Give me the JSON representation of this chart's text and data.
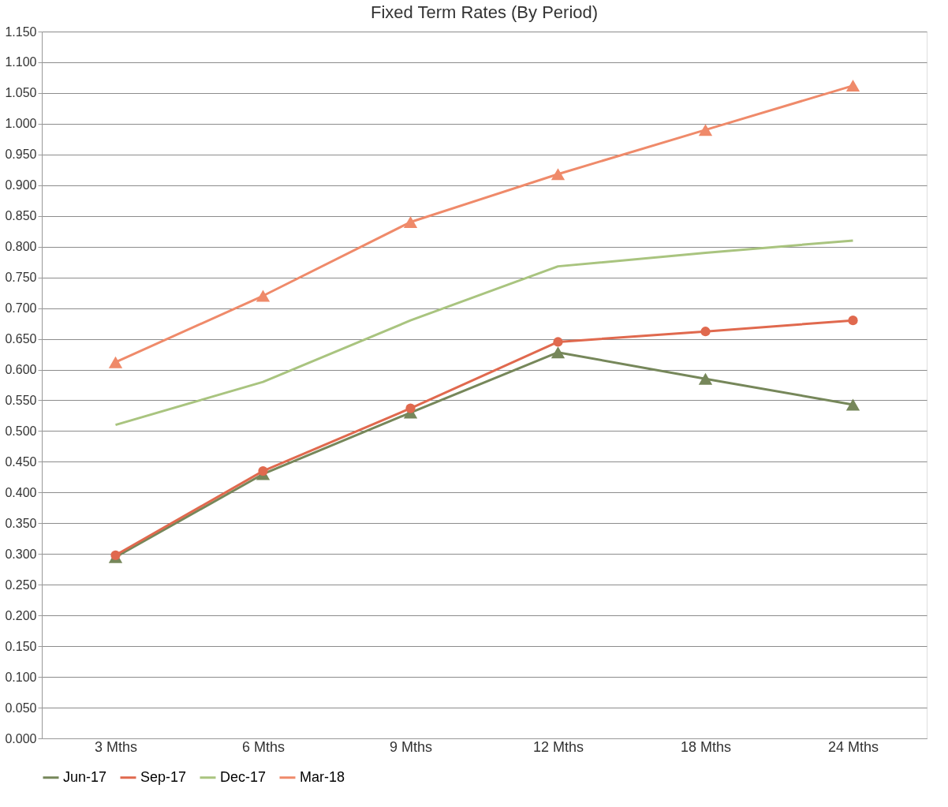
{
  "chart_data": {
    "type": "line",
    "title": "Fixed Term Rates (By Period)",
    "categories": [
      "3 Mths",
      "6 Mths",
      "9 Mths",
      "12 Mths",
      "18 Mths",
      "24 Mths"
    ],
    "series": [
      {
        "name": "Jun-17",
        "color": "#76875a",
        "marker": "triangle",
        "values": [
          0.295,
          0.43,
          0.53,
          0.628,
          0.585,
          0.543
        ]
      },
      {
        "name": "Sep-17",
        "color": "#e0694e",
        "marker": "circle",
        "values": [
          0.298,
          0.435,
          0.537,
          0.645,
          0.662,
          0.68
        ]
      },
      {
        "name": "Dec-17",
        "color": "#a9c47f",
        "marker": "none",
        "values": [
          0.51,
          0.58,
          0.68,
          0.768,
          0.79,
          0.81
        ]
      },
      {
        "name": "Mar-18",
        "color": "#ef8a6a",
        "marker": "triangle",
        "values": [
          0.612,
          0.72,
          0.84,
          0.918,
          0.99,
          1.062
        ]
      }
    ],
    "ylim": [
      0,
      1.15
    ],
    "yticks": [
      {
        "value": 0,
        "label": "0.000"
      },
      {
        "value": 0.05,
        "label": "0.050"
      },
      {
        "value": 0.1,
        "label": "0.100"
      },
      {
        "value": 0.15,
        "label": "0.150"
      },
      {
        "value": 0.2,
        "label": "0.200"
      },
      {
        "value": 0.25,
        "label": "0.250"
      },
      {
        "value": 0.3,
        "label": "0.300"
      },
      {
        "value": 0.35,
        "label": "0.350"
      },
      {
        "value": 0.4,
        "label": "0.400"
      },
      {
        "value": 0.45,
        "label": "0.450"
      },
      {
        "value": 0.5,
        "label": "0.500"
      },
      {
        "value": 0.55,
        "label": "0.550"
      },
      {
        "value": 0.6,
        "label": "0.600"
      },
      {
        "value": 0.65,
        "label": "0.650"
      },
      {
        "value": 0.7,
        "label": "0.700"
      },
      {
        "value": 0.75,
        "label": "0.750"
      },
      {
        "value": 0.8,
        "label": "0.800"
      },
      {
        "value": 0.85,
        "label": "0.850"
      },
      {
        "value": 0.9,
        "label": "0.900"
      },
      {
        "value": 0.95,
        "label": "0.950"
      },
      {
        "value": 1.0,
        "label": "1.000"
      },
      {
        "value": 1.05,
        "label": "1.050"
      },
      {
        "value": 1.1,
        "label": "1.100"
      },
      {
        "value": 1.15,
        "label": "1.150"
      }
    ],
    "grid": "y",
    "legend": "bottom"
  }
}
